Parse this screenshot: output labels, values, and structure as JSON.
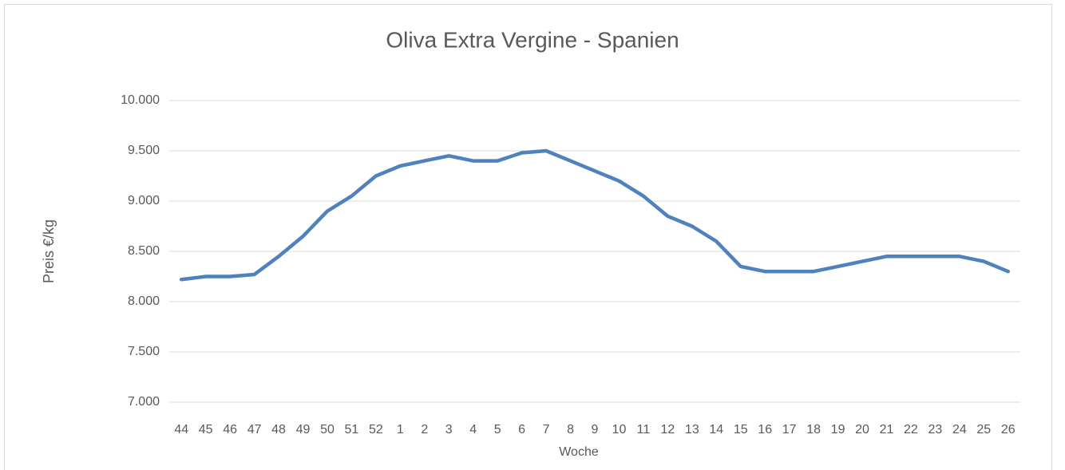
{
  "chart_data": {
    "type": "line",
    "title": "Oliva Extra Vergine - Spanien",
    "x_label": "Woche",
    "y_label": "Preis €/kg",
    "categories": [
      "44",
      "45",
      "46",
      "47",
      "48",
      "49",
      "50",
      "51",
      "52",
      "1",
      "2",
      "3",
      "4",
      "5",
      "6",
      "7",
      "8",
      "9",
      "10",
      "11",
      "12",
      "13",
      "14",
      "15",
      "16",
      "17",
      "18",
      "19",
      "20",
      "21",
      "22",
      "23",
      "24",
      "25",
      "26"
    ],
    "series": [
      {
        "name": "Oliva Extra Vergine - Spanien",
        "color": "#4f81bd",
        "values": [
          8220,
          8250,
          8250,
          8270,
          8450,
          8650,
          8900,
          9050,
          9250,
          9350,
          9400,
          9450,
          9400,
          9400,
          9480,
          9500,
          9400,
          9300,
          9200,
          9050,
          8850,
          8750,
          8600,
          8350,
          8300,
          8300,
          8300,
          8350,
          8400,
          8450,
          8450,
          8450,
          8450,
          8400,
          8300
        ]
      }
    ],
    "ylim": [
      7000,
      10000
    ],
    "yticks": [
      {
        "value": 7000,
        "label": "7.000"
      },
      {
        "value": 7500,
        "label": "7.500"
      },
      {
        "value": 8000,
        "label": "8.000"
      },
      {
        "value": 8500,
        "label": "8.500"
      },
      {
        "value": 9000,
        "label": "9.000"
      },
      {
        "value": 9500,
        "label": "9.500"
      },
      {
        "value": 10000,
        "label": "10.000"
      }
    ],
    "grid": true
  }
}
